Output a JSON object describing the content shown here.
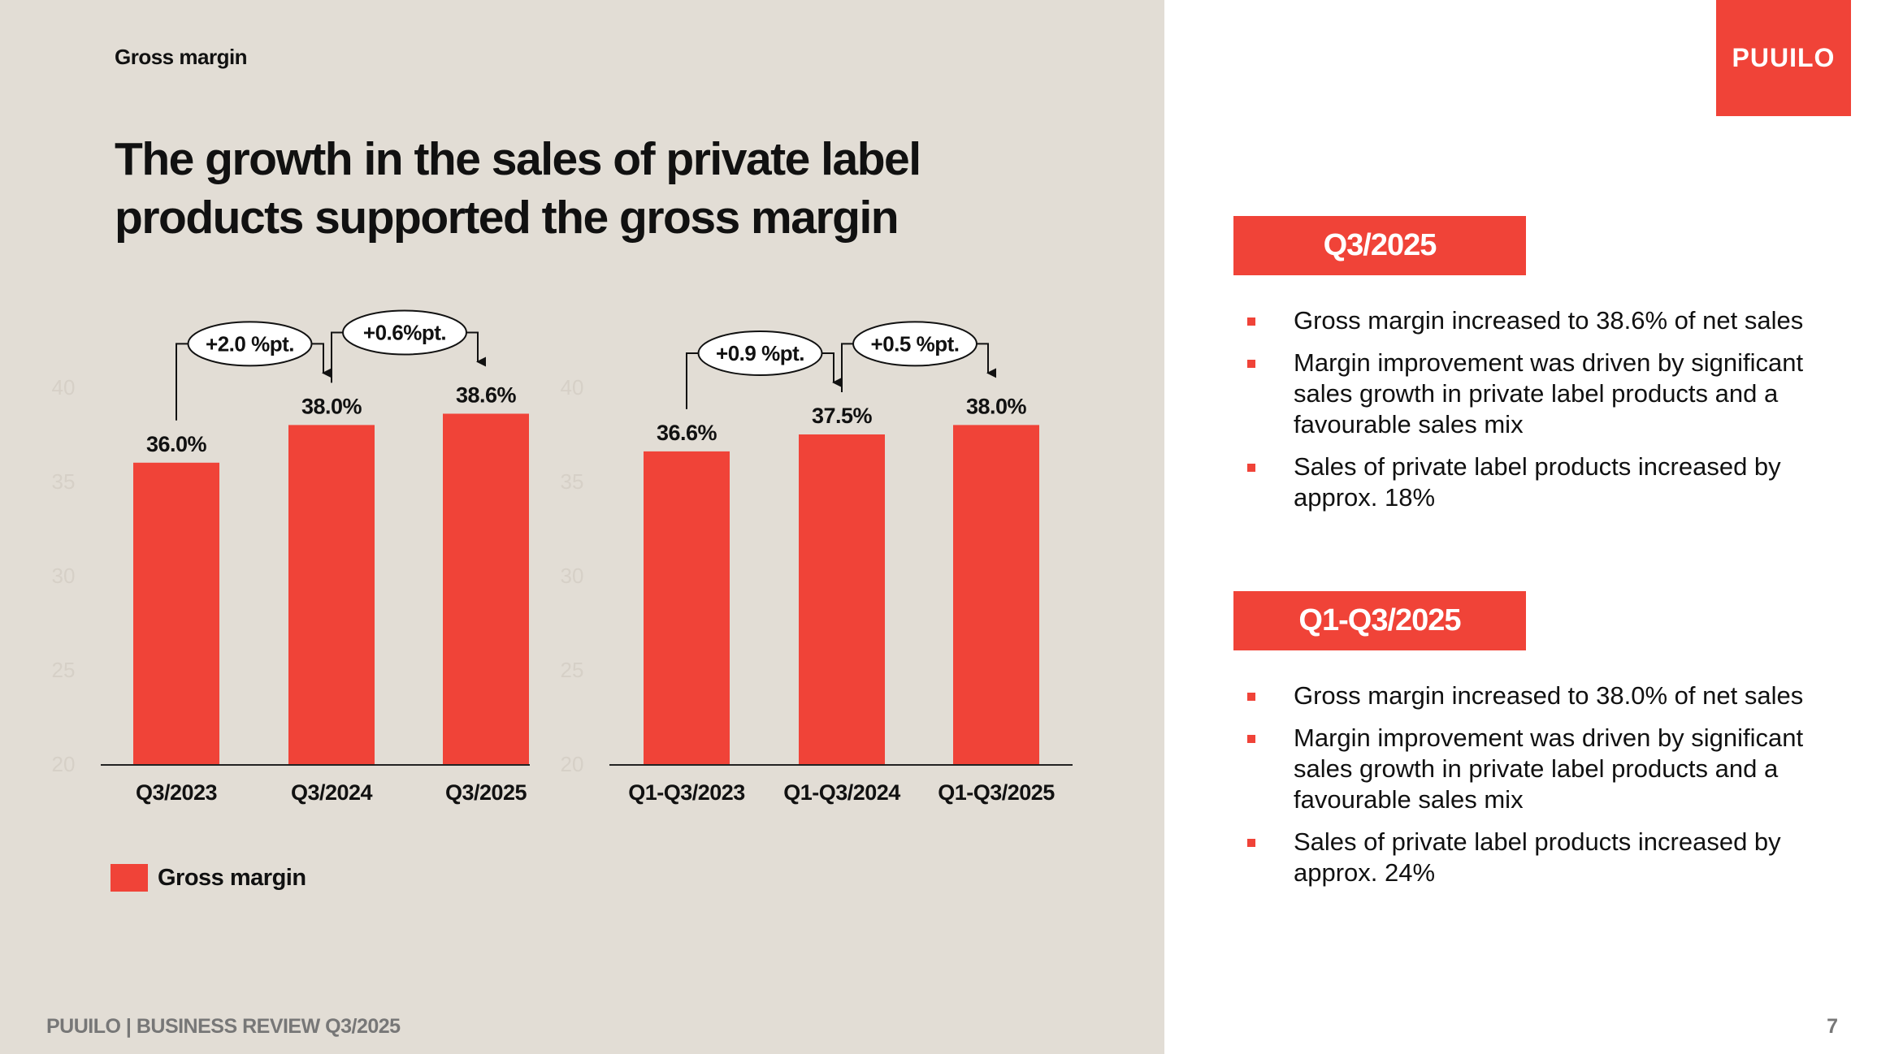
{
  "header": {
    "section_label": "Gross margin",
    "headline": "The growth in the sales of private label products supported the gross margin"
  },
  "logo": {
    "text": "PUUILO"
  },
  "footer": {
    "text": "PUUILO | BUSINESS REVIEW Q3/2025",
    "page_number": "7"
  },
  "colors": {
    "accent": "#f04338",
    "panel_background": "#e2ddd5",
    "text": "#111111"
  },
  "chart_data": [
    {
      "type": "bar",
      "categories": [
        "Q3/2023",
        "Q3/2024",
        "Q3/2025"
      ],
      "series": [
        {
          "name": "Gross margin",
          "values": [
            36.0,
            38.0,
            38.6
          ]
        }
      ],
      "data_labels": [
        "36.0%",
        "38.0%",
        "38.6%"
      ],
      "y_ticks": [
        "20",
        "25",
        "30",
        "35",
        "40"
      ],
      "ylim": [
        20,
        40
      ],
      "grid": false,
      "annotations": [
        {
          "text": "+2.0 %pt.",
          "from": 0,
          "to": 1
        },
        {
          "text": "+0.6%pt.",
          "from": 1,
          "to": 2
        }
      ]
    },
    {
      "type": "bar",
      "categories": [
        "Q1-Q3/2023",
        "Q1-Q3/2024",
        "Q1-Q3/2025"
      ],
      "series": [
        {
          "name": "Gross margin",
          "values": [
            36.6,
            37.5,
            38.0
          ]
        }
      ],
      "data_labels": [
        "36.6%",
        "37.5%",
        "38.0%"
      ],
      "y_ticks": [
        "20",
        "25",
        "30",
        "35",
        "40"
      ],
      "ylim": [
        20,
        40
      ],
      "grid": false,
      "annotations": [
        {
          "text": "+0.9 %pt.",
          "from": 0,
          "to": 1
        },
        {
          "text": "+0.5 %pt.",
          "from": 1,
          "to": 2
        }
      ]
    }
  ],
  "legend": {
    "label": "Gross margin",
    "position": "bottom-left"
  },
  "sections": [
    {
      "title": "Q3/2025",
      "bullets": [
        "Gross margin increased to 38.6% of net sales",
        "Margin improvement was driven by significant sales growth in private label products and a favourable sales mix",
        "Sales of private label products increased by approx. 18%"
      ]
    },
    {
      "title": "Q1-Q3/2025",
      "bullets": [
        "Gross margin increased to 38.0% of net sales",
        "Margin improvement was driven by significant sales growth in private label products and a favourable sales mix",
        "Sales of private label products increased by approx. 24%"
      ]
    }
  ]
}
